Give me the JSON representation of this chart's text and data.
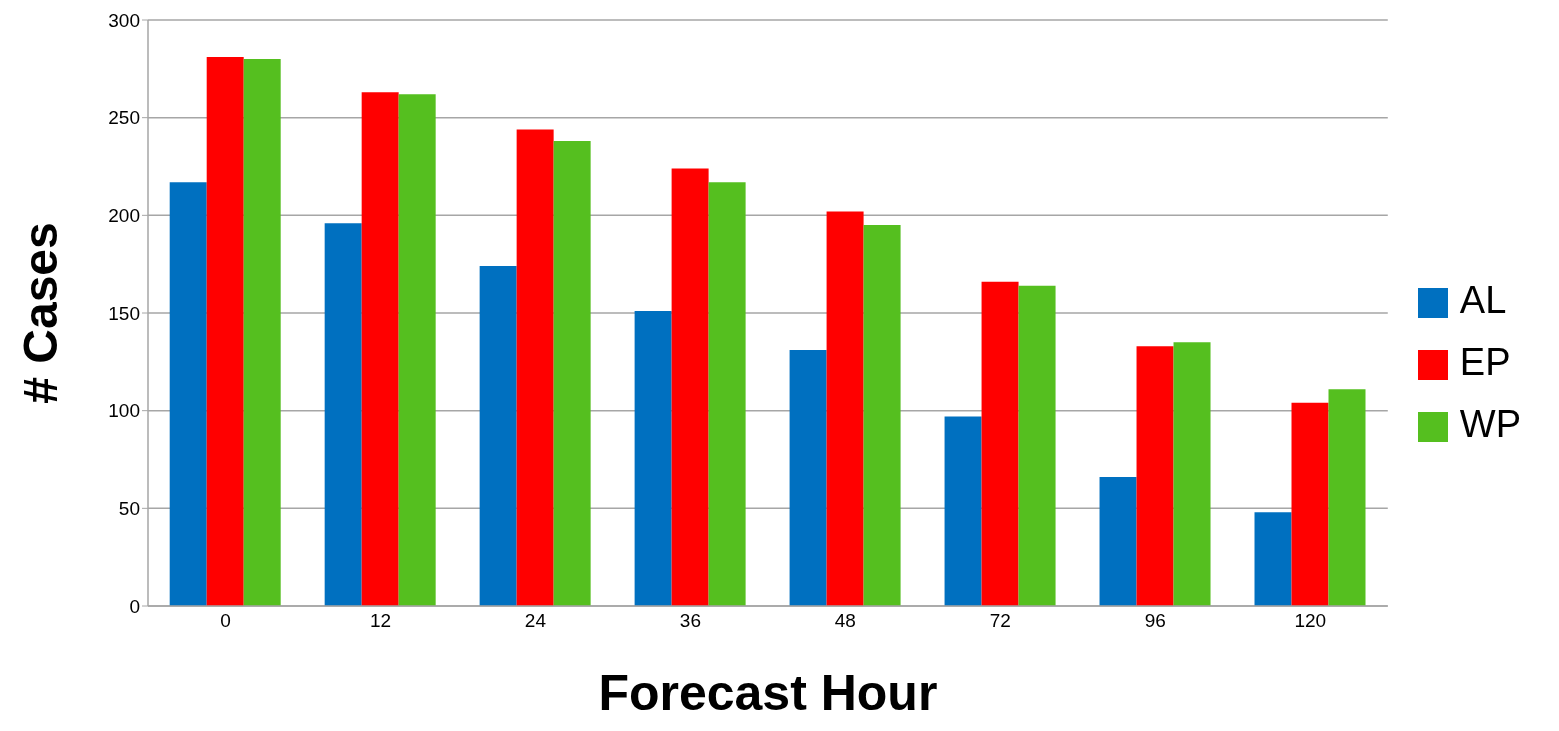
{
  "chart_data": {
    "type": "bar",
    "xlabel": "Forecast Hour",
    "ylabel": "# Cases",
    "categories": [
      "0",
      "12",
      "24",
      "36",
      "48",
      "72",
      "96",
      "120"
    ],
    "series": [
      {
        "name": "AL",
        "color": "#0070c0",
        "values": [
          217,
          196,
          174,
          151,
          131,
          97,
          66,
          48
        ]
      },
      {
        "name": "EP",
        "color": "#ff0000",
        "values": [
          281,
          263,
          244,
          224,
          202,
          166,
          133,
          104
        ]
      },
      {
        "name": "WP",
        "color": "#55bf1f",
        "values": [
          280,
          262,
          238,
          217,
          195,
          164,
          135,
          111
        ]
      }
    ],
    "ylim": [
      0,
      300
    ],
    "yticks": [
      0,
      50,
      100,
      150,
      200,
      250,
      300
    ],
    "grid": "y",
    "legend": "right"
  }
}
